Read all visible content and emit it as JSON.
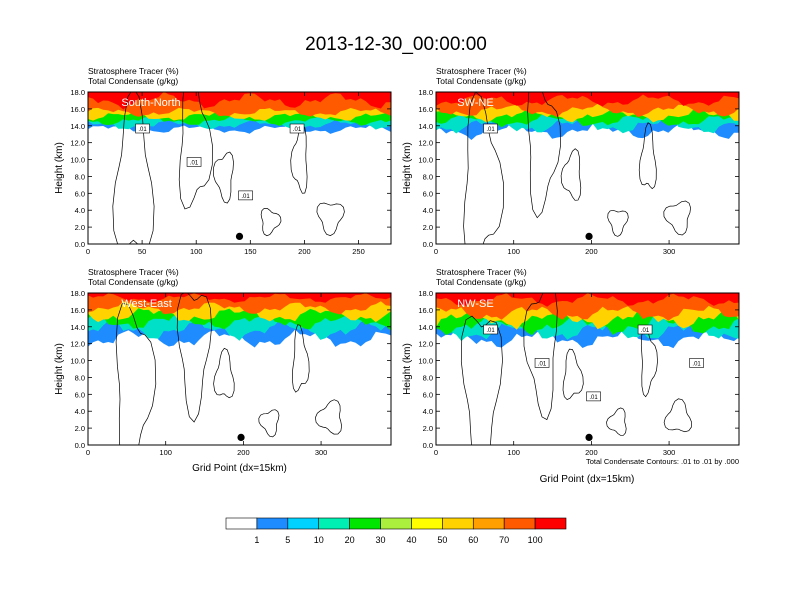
{
  "figure": {
    "title": "2013-12-30_00:00:00",
    "contour_note": "Total Condensate Contours: .01 to .01 by .000",
    "bottom_xlabel": "Grid Point (dx=15km)"
  },
  "chart_data": [
    {
      "type": "heatmap",
      "panel_label": "South-North",
      "subtitle_line1": "Stratosphere Tracer   (%)",
      "subtitle_line2": "Total Condensate   (g/kg)",
      "ylabel": "Height (km)",
      "xlabel": "",
      "xlim": [
        0,
        280
      ],
      "ylim": [
        0,
        18
      ],
      "xticks": [
        "0",
        "50",
        "100",
        "150",
        "200",
        "250"
      ],
      "yticks": [
        "0.0",
        "2.0",
        "4.0",
        "6.0",
        "8.0",
        "10.0",
        "12.0",
        "14.0",
        "16.0",
        "18.0"
      ],
      "marker_x": 140,
      "contour_labels": [
        ".01",
        ".01",
        ".01",
        ".01"
      ],
      "tracer_bands": [
        {
          "min_pct": 1,
          "ridge_km": 13.6,
          "spread": 0.3
        },
        {
          "min_pct": 30,
          "ridge_km": 14.6,
          "spread": 0.3
        },
        {
          "min_pct": 60,
          "ridge_km": 15.6,
          "spread": 0.3
        },
        {
          "min_pct": 100,
          "ridge_km": 17.0,
          "spread": 0.5
        }
      ]
    },
    {
      "type": "heatmap",
      "panel_label": "SW-NE",
      "subtitle_line1": "Stratosphere Tracer   (%)",
      "subtitle_line2": "Total Condensate   (g/kg)",
      "ylabel": "Height (km)",
      "xlabel": "",
      "xlim": [
        0,
        390
      ],
      "ylim": [
        0,
        18
      ],
      "xticks": [
        "0",
        "100",
        "200",
        "300"
      ],
      "yticks": [
        "0.0",
        "2.0",
        "4.0",
        "6.0",
        "8.0",
        "10.0",
        "12.0",
        "14.0",
        "16.0",
        "18.0"
      ],
      "marker_x": 197,
      "contour_labels": [
        ".01"
      ],
      "tracer_bands": [
        {
          "min_pct": 1,
          "ridge_km": 13.4,
          "spread": 0.5
        },
        {
          "min_pct": 30,
          "ridge_km": 14.6,
          "spread": 0.4
        },
        {
          "min_pct": 60,
          "ridge_km": 15.8,
          "spread": 0.4
        },
        {
          "min_pct": 100,
          "ridge_km": 17.0,
          "spread": 0.4
        }
      ]
    },
    {
      "type": "heatmap",
      "panel_label": "West-East",
      "subtitle_line1": "Stratosphere Tracer   (%)",
      "subtitle_line2": "Total Condensate   (g/kg)",
      "ylabel": "Height (km)",
      "xlabel": "Grid Point (dx=15km)",
      "xlim": [
        0,
        390
      ],
      "ylim": [
        0,
        18
      ],
      "xticks": [
        "0",
        "100",
        "200",
        "300"
      ],
      "yticks": [
        "0.0",
        "2.0",
        "4.0",
        "6.0",
        "8.0",
        "10.0",
        "12.0",
        "14.0",
        "16.0",
        "18.0"
      ],
      "marker_x": 197,
      "contour_labels": [],
      "tracer_bands": [
        {
          "min_pct": 1,
          "ridge_km": 12.6,
          "spread": 0.6
        },
        {
          "min_pct": 30,
          "ridge_km": 14.6,
          "spread": 0.5
        },
        {
          "min_pct": 60,
          "ridge_km": 16.2,
          "spread": 0.4
        },
        {
          "min_pct": 100,
          "ridge_km": 17.4,
          "spread": 0.3
        }
      ]
    },
    {
      "type": "heatmap",
      "panel_label": "NW-SE",
      "subtitle_line1": "Stratosphere Tracer   (%)",
      "subtitle_line2": "Total Condensate   (g/kg)",
      "ylabel": "Height (km)",
      "xlabel": "Grid Point (dx=15km)",
      "xlim": [
        0,
        390
      ],
      "ylim": [
        0,
        18
      ],
      "xticks": [
        "0",
        "100",
        "200",
        "300"
      ],
      "yticks": [
        "0.0",
        "2.0",
        "4.0",
        "6.0",
        "8.0",
        "10.0",
        "12.0",
        "14.0",
        "16.0",
        "18.0"
      ],
      "marker_x": 197,
      "contour_labels": [
        ".01",
        ".01",
        ".01",
        ".01",
        ".01"
      ],
      "tracer_bands": [
        {
          "min_pct": 1,
          "ridge_km": 12.6,
          "spread": 0.6
        },
        {
          "min_pct": 30,
          "ridge_km": 14.2,
          "spread": 0.6
        },
        {
          "min_pct": 60,
          "ridge_km": 15.6,
          "spread": 0.5
        },
        {
          "min_pct": 100,
          "ridge_km": 17.2,
          "spread": 0.4
        }
      ]
    }
  ],
  "colorbar": {
    "labels": [
      "1",
      "5",
      "10",
      "20",
      "30",
      "40",
      "50",
      "60",
      "70",
      "100"
    ],
    "colors": [
      "#ffffff",
      "#1e8cff",
      "#00d2ff",
      "#00f0b4",
      "#00e600",
      "#aaf03c",
      "#ffff00",
      "#ffd200",
      "#ffa000",
      "#ff5a00",
      "#ff0000"
    ]
  }
}
